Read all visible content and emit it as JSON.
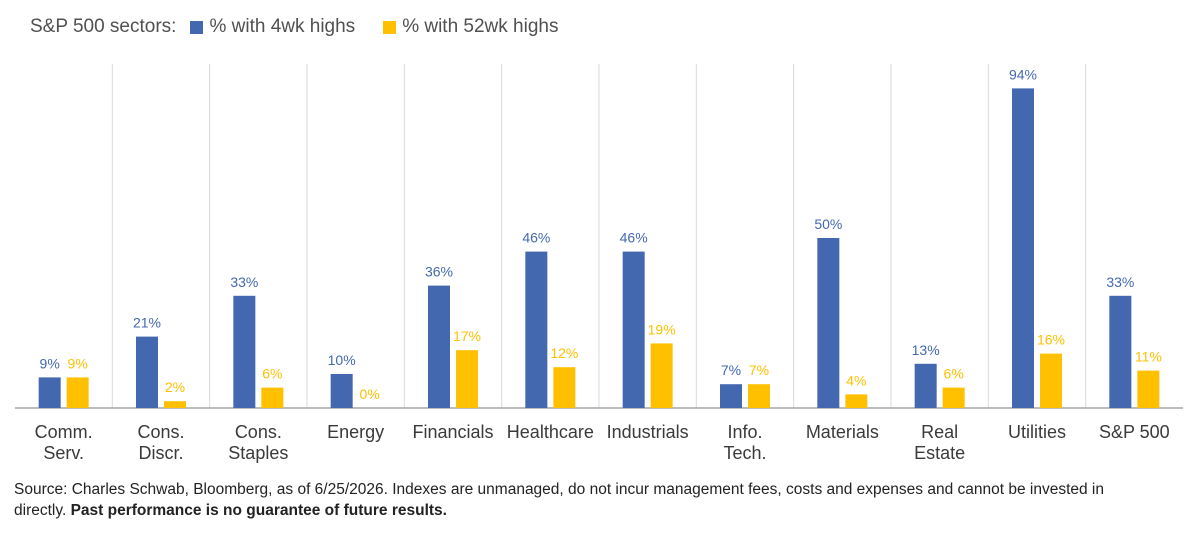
{
  "legend": {
    "label": "S&P 500 sectors:",
    "series1": "% with 4wk highs",
    "series2": "% with 52wk highs"
  },
  "colors": {
    "series1": "#4468b0",
    "series2": "#ffc000",
    "grid": "#d9d9d9",
    "axis": "#a6a6a6"
  },
  "chart_data": {
    "type": "bar",
    "categories": [
      [
        "Comm.",
        "Serv."
      ],
      [
        "Cons.",
        "Discr."
      ],
      [
        "Cons.",
        "Staples"
      ],
      [
        "Energy"
      ],
      [
        "Financials"
      ],
      [
        "Healthcare"
      ],
      [
        "Industrials"
      ],
      [
        "Info.",
        "Tech."
      ],
      [
        "Materials"
      ],
      [
        "Real",
        "Estate"
      ],
      [
        "Utilities"
      ],
      [
        "S&P 500"
      ]
    ],
    "series": [
      {
        "name": "% with 4wk highs",
        "values": [
          9,
          21,
          33,
          10,
          36,
          46,
          46,
          7,
          50,
          13,
          94,
          33
        ],
        "labels": [
          "9%",
          "21%",
          "33%",
          "10%",
          "36%",
          "46%",
          "46%",
          "7%",
          "50%",
          "13%",
          "94%",
          "33%"
        ]
      },
      {
        "name": "% with 52wk highs",
        "values": [
          9,
          2,
          6,
          0,
          17,
          12,
          19,
          7,
          4,
          6,
          16,
          11
        ],
        "labels": [
          "9%",
          "2%",
          "6%",
          "0%",
          "17%",
          "12%",
          "19%",
          "7%",
          "4%",
          "6%",
          "16%",
          "11%"
        ]
      }
    ],
    "ylim": [
      0,
      100
    ],
    "grid": "vertical separators"
  },
  "footer": {
    "source": "Source: Charles Schwab, Bloomberg, as of 6/25/2026.   Indexes are unmanaged, do not incur management fees, costs and expenses and cannot be invested in directly. ",
    "bold": "Past performance is no guarantee of future results."
  }
}
